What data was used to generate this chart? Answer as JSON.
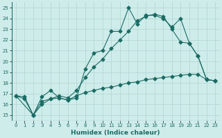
{
  "xlabel": "Humidex (Indice chaleur)",
  "bg_color": "#ceecea",
  "grid_color": "#b8dbd8",
  "line_color": "#1a6b64",
  "xlim": [
    -0.5,
    23.5
  ],
  "ylim": [
    14.5,
    25.5
  ],
  "xticks": [
    0,
    1,
    2,
    3,
    4,
    5,
    6,
    7,
    8,
    9,
    10,
    11,
    12,
    13,
    14,
    15,
    16,
    17,
    18,
    19,
    20,
    21,
    22,
    23
  ],
  "yticks": [
    15,
    16,
    17,
    18,
    19,
    20,
    21,
    22,
    23,
    24,
    25
  ],
  "series1_x": [
    0,
    1,
    2,
    3,
    4,
    5,
    6,
    7,
    8,
    9,
    10,
    11,
    12,
    13,
    14,
    15,
    16,
    17,
    18,
    19,
    20,
    21,
    22,
    23
  ],
  "series1_y": [
    16.8,
    16.5,
    15.0,
    16.7,
    17.3,
    16.6,
    16.4,
    16.6,
    19.3,
    20.8,
    21.0,
    22.8,
    22.8,
    25.0,
    23.5,
    24.3,
    24.3,
    24.0,
    23.2,
    24.0,
    21.7,
    20.5,
    18.3,
    18.2
  ],
  "series2_x": [
    0,
    1,
    2,
    3,
    4,
    5,
    6,
    7,
    8,
    9,
    10,
    11,
    12,
    13,
    14,
    15,
    16,
    17,
    18,
    19,
    20,
    21,
    22,
    23
  ],
  "series2_y": [
    16.8,
    16.7,
    15.0,
    16.3,
    16.5,
    16.6,
    16.4,
    16.8,
    17.1,
    17.3,
    17.5,
    17.6,
    17.8,
    18.0,
    18.1,
    18.3,
    18.4,
    18.5,
    18.6,
    18.7,
    18.8,
    18.8,
    18.3,
    18.2
  ],
  "series3_x": [
    0,
    2,
    3,
    4,
    5,
    6,
    7,
    8,
    9,
    10,
    11,
    12,
    13,
    14,
    15,
    16,
    17,
    18,
    19,
    20,
    21,
    22,
    23
  ],
  "series3_y": [
    16.8,
    15.0,
    16.0,
    16.5,
    16.8,
    16.6,
    17.3,
    18.5,
    19.5,
    20.2,
    21.2,
    22.0,
    22.8,
    23.8,
    24.2,
    24.4,
    24.2,
    23.0,
    21.8,
    21.7,
    20.5,
    18.3,
    18.2
  ]
}
